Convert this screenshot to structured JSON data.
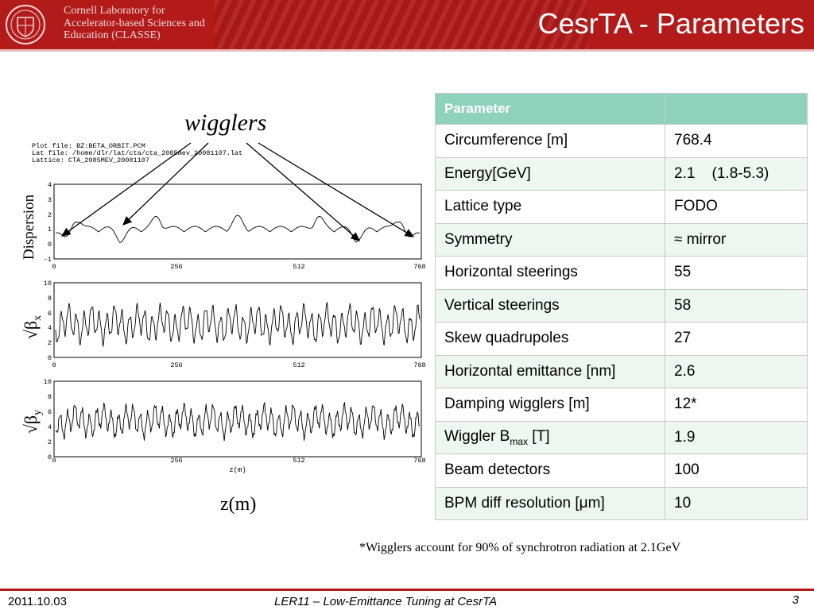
{
  "header": {
    "lab_name_lines": [
      "Cornell Laboratory for",
      "Accelerator-based Sciences and",
      "Education (CLASSE)"
    ],
    "title": "CesrTA - Parameters",
    "color": "#b31b1b"
  },
  "figure": {
    "wigglers_label": "wigglers",
    "plot_file_lines": [
      "Plot file: BZ:BETA_ORBIT.PCM",
      "Lat file: /home/dlr/lat/cta/cta_2085mev_20081107.lat",
      "Lattice: CTA_2085MEV_20081107"
    ],
    "panel_dispersion_label": "Dispersion",
    "panel_betax_label": "√β",
    "panel_betax_sub": "x",
    "panel_betay_label": "√β",
    "panel_betay_sub": "y",
    "x_ticks": [
      "0",
      "256",
      "512",
      "768"
    ],
    "dispersion_y_ticks": [
      "-1",
      "0",
      "1",
      "2",
      "3",
      "4"
    ],
    "beta_y_ticks": [
      "0",
      "2",
      "4",
      "6",
      "8",
      "10"
    ],
    "small_xlabel": "z(m)",
    "zm_label": "z(m)"
  },
  "table": {
    "header": [
      "Parameter",
      ""
    ],
    "rows": [
      {
        "name": "Circumference [m]",
        "value": "768.4"
      },
      {
        "name": "Energy[GeV]",
        "value": "2.1    (1.8-5.3)"
      },
      {
        "name": "Lattice type",
        "value": "FODO"
      },
      {
        "name": "Symmetry",
        "value": "≈ mirror"
      },
      {
        "name": "Horizontal steerings",
        "value": "55"
      },
      {
        "name": "Vertical steerings",
        "value": "58"
      },
      {
        "name": "Skew quadrupoles",
        "value": "27"
      },
      {
        "name": "Horizontal emittance [nm]",
        "value": "2.6"
      },
      {
        "name": "Damping wigglers [m]",
        "value": "12*"
      },
      {
        "name": "Wiggler B",
        "name_sub": "max",
        "name_suffix": " [T]",
        "value": "1.9"
      },
      {
        "name": "Beam detectors",
        "value": "100"
      },
      {
        "name": "BPM diff resolution [μm]",
        "value": "10"
      }
    ]
  },
  "footnote": "*Wigglers account for 90% of synchrotron radiation at 2.1GeV",
  "footer": {
    "date": "2011.10.03",
    "talk": "LER11 – Low-Emittance Tuning at CesrTA",
    "page": "3"
  }
}
